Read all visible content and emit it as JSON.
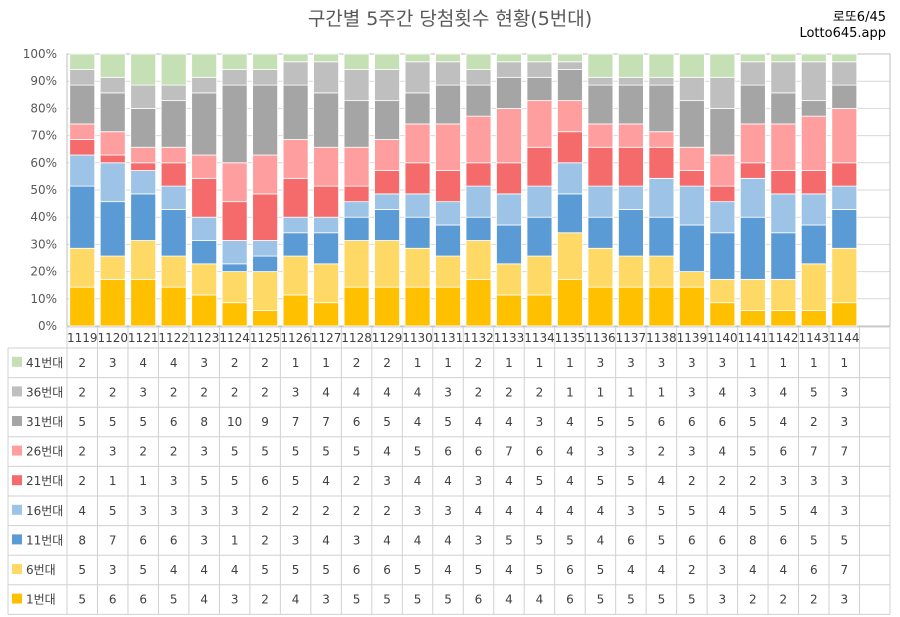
{
  "title": "구간별 5주간 당첨횟수 현황(5번대)",
  "brand": {
    "line1": "로또6/45",
    "line2": "Lotto645.app"
  },
  "colors": {
    "41번대": "#c5e0b4",
    "36번대": "#bfbfbf",
    "31번대": "#a5a5a5",
    "26번대": "#ff9e9e",
    "21번대": "#f56b6b",
    "16번대": "#9dc3e6",
    "11번대": "#5b9bd5",
    "6번대": "#ffd966",
    "1번대": "#ffc000"
  },
  "chart_data": {
    "type": "bar",
    "stacked": "percent",
    "ylim": [
      0,
      100
    ],
    "yticks": [
      "0%",
      "10%",
      "20%",
      "30%",
      "40%",
      "50%",
      "60%",
      "70%",
      "80%",
      "90%",
      "100%"
    ],
    "grid": true,
    "legend": "data-table",
    "categories": [
      "1119",
      "1120",
      "1121",
      "1122",
      "1123",
      "1124",
      "1125",
      "1126",
      "1127",
      "1128",
      "1129",
      "1130",
      "1131",
      "1132",
      "1133",
      "1134",
      "1135",
      "1136",
      "1137",
      "1138",
      "1139",
      "1140",
      "1141",
      "1142",
      "1143",
      "1144"
    ],
    "series": [
      {
        "name": "41번대",
        "values": [
          2,
          3,
          4,
          4,
          3,
          2,
          2,
          1,
          1,
          2,
          2,
          1,
          1,
          2,
          1,
          1,
          1,
          3,
          3,
          3,
          3,
          3,
          1,
          1,
          1,
          1
        ]
      },
      {
        "name": "36번대",
        "values": [
          2,
          2,
          3,
          2,
          2,
          2,
          2,
          3,
          4,
          4,
          4,
          4,
          3,
          2,
          2,
          2,
          1,
          1,
          1,
          1,
          3,
          4,
          3,
          4,
          5,
          3
        ]
      },
      {
        "name": "31번대",
        "values": [
          5,
          5,
          5,
          6,
          8,
          10,
          9,
          7,
          7,
          6,
          5,
          4,
          5,
          4,
          4,
          3,
          4,
          5,
          5,
          6,
          6,
          6,
          5,
          4,
          2,
          3
        ]
      },
      {
        "name": "26번대",
        "values": [
          2,
          3,
          2,
          2,
          3,
          5,
          5,
          5,
          5,
          5,
          4,
          5,
          6,
          6,
          7,
          6,
          4,
          3,
          3,
          2,
          3,
          4,
          5,
          6,
          7,
          7
        ]
      },
      {
        "name": "21번대",
        "values": [
          2,
          1,
          1,
          3,
          5,
          5,
          6,
          5,
          4,
          2,
          3,
          4,
          4,
          3,
          4,
          5,
          4,
          5,
          5,
          4,
          2,
          2,
          2,
          3,
          3,
          3
        ]
      },
      {
        "name": "16번대",
        "values": [
          4,
          5,
          3,
          3,
          3,
          3,
          2,
          2,
          2,
          2,
          2,
          3,
          3,
          4,
          4,
          4,
          4,
          4,
          3,
          5,
          5,
          4,
          5,
          5,
          4,
          3
        ]
      },
      {
        "name": "11번대",
        "values": [
          8,
          7,
          6,
          6,
          3,
          1,
          2,
          3,
          4,
          3,
          4,
          4,
          4,
          3,
          5,
          5,
          5,
          4,
          6,
          5,
          6,
          6,
          8,
          6,
          5,
          5
        ]
      },
      {
        "name": "6번대",
        "values": [
          5,
          3,
          5,
          4,
          4,
          4,
          5,
          5,
          5,
          6,
          6,
          5,
          4,
          5,
          4,
          5,
          6,
          5,
          4,
          4,
          2,
          3,
          4,
          4,
          6,
          7
        ]
      },
      {
        "name": "1번대",
        "values": [
          5,
          6,
          6,
          5,
          4,
          3,
          2,
          4,
          3,
          5,
          5,
          5,
          5,
          6,
          4,
          4,
          6,
          5,
          5,
          5,
          5,
          3,
          2,
          2,
          2,
          3
        ]
      }
    ]
  }
}
